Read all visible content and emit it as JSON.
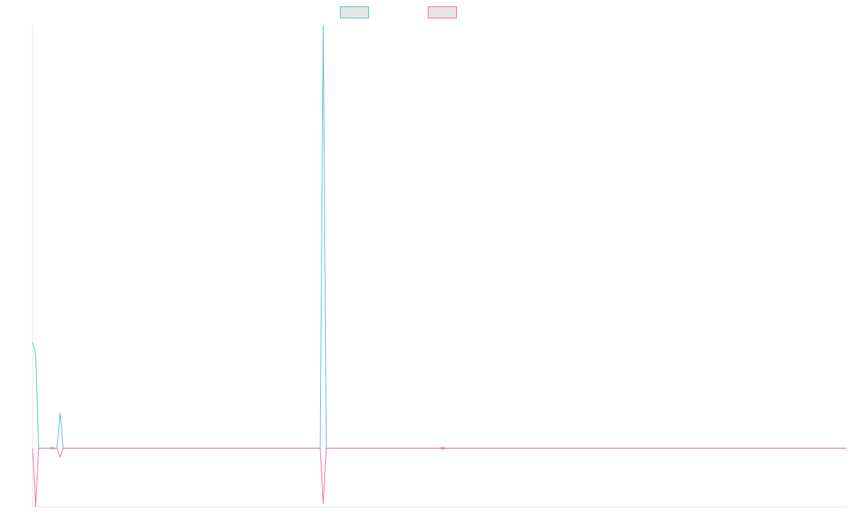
{
  "chart_data": {
    "type": "line",
    "title": "",
    "xlabel": "",
    "ylabel": "",
    "grid": false,
    "legend": "top-center",
    "ylim": [
      -10,
      72
    ],
    "x": [
      0,
      1,
      2,
      3,
      4,
      5,
      6,
      7,
      8,
      9,
      10,
      11,
      12,
      13,
      14,
      15,
      16,
      17,
      18,
      19,
      20,
      21,
      22,
      23,
      24,
      25,
      26,
      27,
      28,
      29,
      30,
      31,
      32,
      33,
      34,
      35,
      36,
      37,
      38,
      39,
      40,
      41,
      42,
      43,
      44,
      45,
      46,
      47,
      48,
      49,
      50,
      51,
      52,
      53,
      54,
      55,
      56,
      57,
      58,
      59,
      60,
      61,
      62,
      63,
      64,
      65,
      66,
      67,
      68,
      69,
      70,
      71,
      72,
      73,
      74,
      75,
      76,
      77,
      78,
      79,
      80,
      81,
      82,
      83,
      84,
      85,
      86,
      87,
      88,
      89,
      90,
      91,
      92,
      93,
      94,
      95,
      96,
      97,
      98,
      99,
      100,
      101,
      102,
      103,
      104,
      105,
      106,
      107,
      108,
      109,
      110,
      111,
      112,
      113,
      114,
      115,
      116,
      117,
      118,
      119,
      120,
      121,
      122,
      123,
      124,
      125,
      126,
      127,
      128,
      129,
      130,
      131,
      132,
      133,
      134,
      135,
      136,
      137,
      138,
      139,
      140,
      141,
      142,
      143,
      144,
      145,
      146,
      147,
      148,
      149,
      150,
      151,
      152,
      153,
      154,
      155,
      156,
      157,
      158,
      159,
      160,
      161,
      162,
      163,
      164,
      165,
      166,
      167,
      168,
      169,
      170,
      171,
      172,
      173,
      174,
      175,
      176,
      177,
      178,
      179,
      180,
      181,
      182,
      183,
      184,
      185,
      186,
      187,
      188,
      189,
      190,
      191,
      192,
      193,
      194,
      195,
      196,
      197,
      198,
      199,
      200,
      201,
      202,
      203,
      204,
      205,
      206,
      207,
      208,
      209,
      210,
      211,
      212,
      213,
      214,
      215,
      216,
      217,
      218,
      219,
      220,
      221,
      222,
      223,
      224,
      225,
      226,
      227,
      228,
      229,
      230,
      231,
      232,
      233,
      234,
      235,
      236,
      237,
      238,
      239,
      240,
      241,
      242,
      243,
      244,
      245,
      246,
      247,
      248,
      249,
      250,
      251,
      252,
      253,
      254,
      255,
      256,
      257,
      258,
      259,
      260,
      261,
      262,
      263,
      264,
      265,
      266
    ],
    "series": [
      {
        "color": "#4bc0c0",
        "values": [
          18,
          16,
          0,
          0,
          0,
          0,
          0,
          0,
          0,
          6,
          0,
          0,
          0,
          0,
          0,
          0,
          0,
          0,
          0,
          0,
          0,
          0,
          0,
          0,
          0,
          0,
          0,
          0,
          0,
          0,
          0,
          0,
          0,
          0,
          0,
          0,
          0,
          0,
          0,
          0,
          0,
          0,
          0,
          0,
          0,
          0,
          0,
          0,
          0,
          0,
          0,
          0,
          0,
          0,
          0,
          0,
          0,
          0,
          0,
          0,
          0,
          0,
          0,
          0,
          0,
          0,
          0,
          0,
          0,
          0,
          0,
          0,
          0,
          0,
          0,
          0,
          0,
          0,
          0,
          0,
          0,
          0,
          0,
          0,
          0,
          0,
          0,
          0,
          0,
          0,
          0,
          0,
          0,
          0,
          0,
          72,
          0,
          0,
          0,
          0,
          0,
          0,
          0,
          0,
          0,
          0,
          0,
          0,
          0,
          0,
          0,
          0,
          0,
          0,
          0,
          0,
          0,
          0,
          0,
          0,
          0,
          0,
          0,
          0,
          0,
          0,
          0,
          0,
          0,
          0,
          0,
          0,
          0,
          0,
          0,
          0,
          0,
          0,
          0,
          0,
          0,
          0,
          0,
          0,
          0,
          0,
          0,
          0,
          0,
          0,
          0,
          0,
          0,
          0,
          0,
          0,
          0,
          0,
          0,
          0,
          0,
          0,
          0,
          0,
          0,
          0,
          0,
          0,
          0,
          0,
          0,
          0,
          0,
          0,
          0,
          0,
          0,
          0,
          0,
          0,
          0,
          0,
          0,
          0,
          0,
          0,
          0,
          0,
          0,
          0,
          0,
          0,
          0,
          0,
          0,
          0,
          0,
          0,
          0,
          0,
          0,
          0,
          0,
          0,
          0,
          0,
          0,
          0,
          0,
          0,
          0,
          0,
          0,
          0,
          0,
          0,
          0,
          0,
          0,
          0,
          0,
          0,
          0,
          0,
          0,
          0,
          0,
          0,
          0,
          0,
          0,
          0,
          0,
          0,
          0,
          0,
          0,
          0,
          0,
          0,
          0,
          0,
          0,
          0,
          0,
          0,
          0,
          0,
          0,
          0,
          0,
          0,
          0,
          0,
          0,
          0,
          0,
          0,
          0,
          0,
          0,
          0,
          0,
          0,
          0,
          0,
          0
        ]
      },
      {
        "color": "#ff6384",
        "values": [
          0,
          -10,
          0,
          0,
          0,
          0,
          0,
          0,
          0,
          -1.5,
          0,
          0,
          0,
          0,
          0,
          0,
          0,
          0,
          0,
          0,
          0,
          0,
          0,
          0,
          0,
          0,
          0,
          0,
          0,
          0,
          0,
          0,
          0,
          0,
          0,
          0,
          0,
          0,
          0,
          0,
          0,
          0,
          0,
          0,
          0,
          0,
          0,
          0,
          0,
          0,
          0,
          0,
          0,
          0,
          0,
          0,
          0,
          0,
          0,
          0,
          0,
          0,
          0,
          0,
          0,
          0,
          0,
          0,
          0,
          0,
          0,
          0,
          0,
          0,
          0,
          0,
          0,
          0,
          0,
          0,
          0,
          0,
          0,
          0,
          0,
          0,
          0,
          0,
          0,
          0,
          0,
          0,
          0,
          0,
          0,
          -9.5,
          0,
          0,
          0,
          0,
          0,
          0,
          0,
          0,
          0,
          0,
          0,
          0,
          0,
          0,
          0,
          0,
          0,
          0,
          0,
          0,
          0,
          0,
          0,
          0,
          0,
          0,
          0,
          0,
          0,
          0,
          0,
          0,
          0,
          0,
          0,
          0,
          0,
          0,
          0,
          0,
          0,
          0,
          0,
          0,
          0,
          0,
          0,
          0,
          0,
          0,
          0,
          0,
          0,
          0,
          0,
          0,
          0,
          0,
          0,
          0,
          0,
          0,
          0,
          0,
          0,
          0,
          0,
          0,
          0,
          0,
          0,
          0,
          0,
          0,
          0,
          0,
          0,
          0,
          0,
          0,
          0,
          0,
          0,
          0,
          0,
          0,
          0,
          0,
          0,
          0,
          0,
          0,
          0,
          0,
          0,
          0,
          0,
          0,
          0,
          0,
          0,
          0,
          0,
          0,
          0,
          0,
          0,
          0,
          0,
          0,
          0,
          0,
          0,
          0,
          0,
          0,
          0,
          0,
          0,
          0,
          0,
          0,
          0,
          0,
          0,
          0,
          0,
          0,
          0,
          0,
          0,
          0,
          0,
          0,
          0,
          0,
          0,
          0,
          0,
          0,
          0,
          0,
          0,
          0,
          0,
          0,
          0,
          0,
          0,
          0,
          0,
          0,
          0,
          0,
          0,
          0,
          0,
          0,
          0,
          0,
          0,
          0,
          0,
          0,
          0,
          0,
          0,
          0,
          0,
          0,
          0
        ]
      }
    ]
  }
}
